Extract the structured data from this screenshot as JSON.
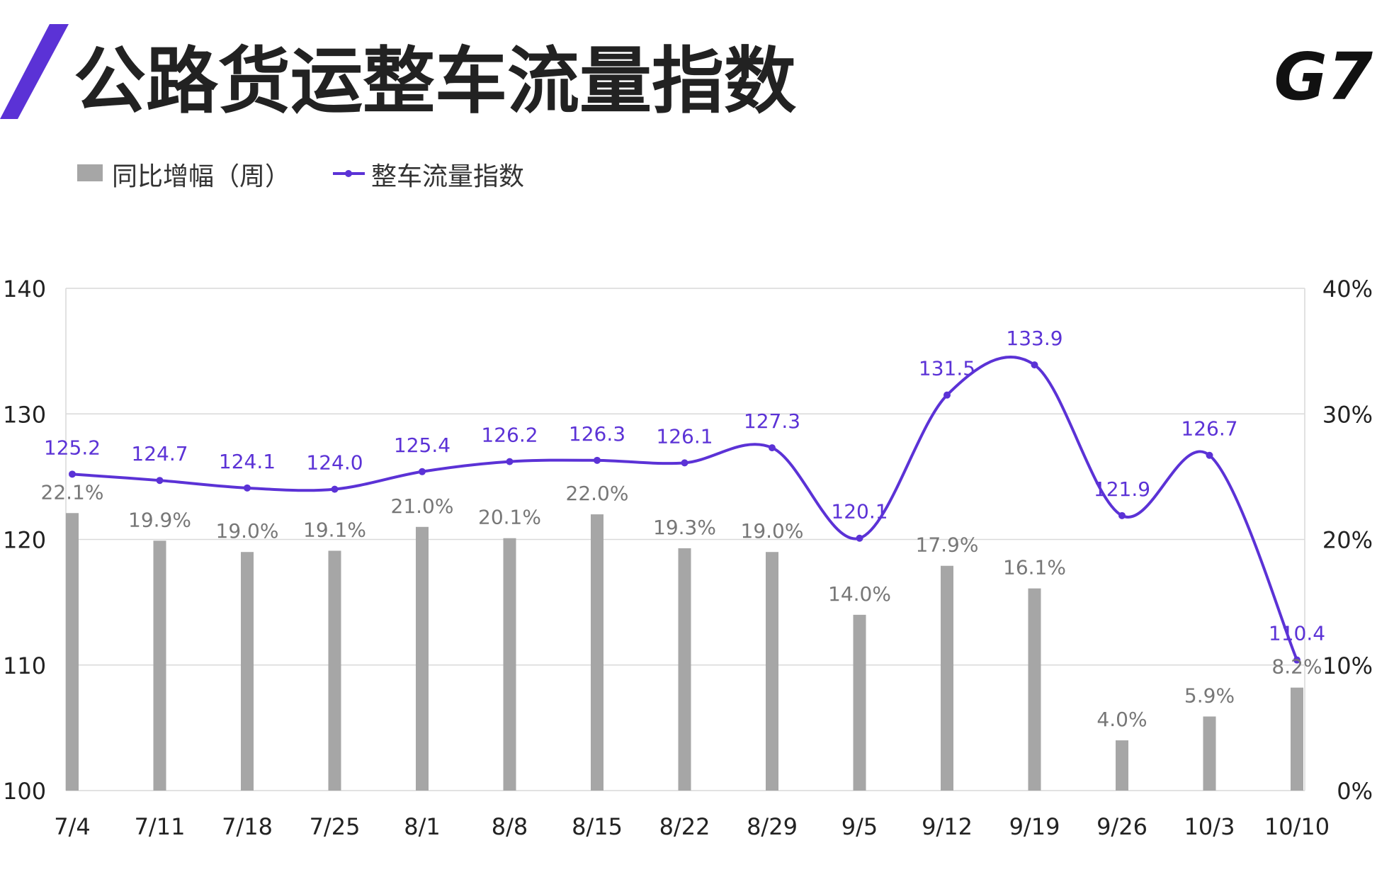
{
  "header": {
    "title": "公路货运整车流量指数",
    "logo": "G7"
  },
  "colors": {
    "accent": "#5b32d6",
    "bar": "#a6a6a6",
    "grid": "#d9d9d9",
    "bar_label": "#777777"
  },
  "chart_data": {
    "type": "bar+line",
    "categories": [
      "7/4",
      "7/11",
      "7/18",
      "7/25",
      "8/1",
      "8/8",
      "8/15",
      "8/22",
      "8/29",
      "9/5",
      "9/12",
      "9/19",
      "9/26",
      "10/3",
      "10/10"
    ],
    "series": [
      {
        "name": "同比增幅（周）",
        "type": "bar",
        "axis": "right",
        "values": [
          22.1,
          19.9,
          19.0,
          19.1,
          21.0,
          20.1,
          22.0,
          19.3,
          19.0,
          14.0,
          17.9,
          16.1,
          4.0,
          5.9,
          8.2
        ],
        "labels": [
          "22.1%",
          "19.9%",
          "19.0%",
          "19.1%",
          "21.0%",
          "20.1%",
          "22.0%",
          "19.3%",
          "19.0%",
          "14.0%",
          "17.9%",
          "16.1%",
          "4.0%",
          "5.9%",
          "8.2%"
        ]
      },
      {
        "name": "整车流量指数",
        "type": "line",
        "axis": "left",
        "smooth": true,
        "values": [
          125.2,
          124.7,
          124.1,
          124.0,
          125.4,
          126.2,
          126.3,
          126.1,
          127.3,
          120.1,
          131.5,
          133.9,
          121.9,
          126.7,
          110.4
        ],
        "labels": [
          "125.2",
          "124.7",
          "124.1",
          "124.0",
          "125.4",
          "126.2",
          "126.3",
          "126.1",
          "127.3",
          "120.1",
          "131.5",
          "133.9",
          "121.9",
          "126.7",
          "110.4"
        ]
      }
    ],
    "y_left": {
      "lim": [
        100,
        140
      ],
      "ticks": [
        "100",
        "110",
        "120",
        "130",
        "140"
      ]
    },
    "y_right": {
      "lim": [
        0,
        40
      ],
      "ticks": [
        "0%",
        "10%",
        "20%",
        "30%",
        "40%"
      ]
    },
    "grid": true,
    "legend": "top-left"
  }
}
